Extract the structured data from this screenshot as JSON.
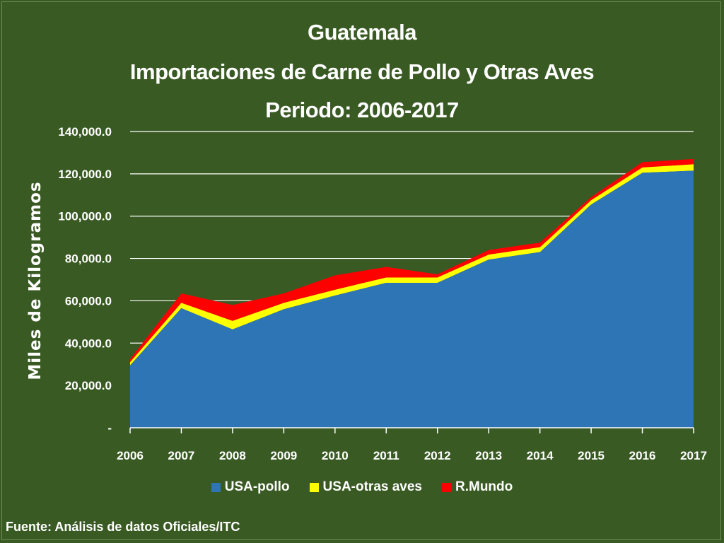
{
  "chart_data": {
    "type": "area",
    "stacked": true,
    "title_lines": [
      "Guatemala",
      "Importaciones de Carne de Pollo y Otras Aves",
      "Periodo: 2006-2017"
    ],
    "ylabel": "Miles de Kilogramos",
    "xlabel": "",
    "categories": [
      "2006",
      "2007",
      "2008",
      "2009",
      "2010",
      "2011",
      "2012",
      "2013",
      "2014",
      "2015",
      "2016",
      "2017"
    ],
    "y_ticks": [
      "-",
      "20,000.0",
      "40,000.0",
      "60,000.0",
      "80,000.0",
      "100,000.0",
      "120,000.0",
      "140,000.0"
    ],
    "ylim": [
      0,
      140000
    ],
    "grid": true,
    "legend_position": "bottom",
    "series": [
      {
        "name": "USA-pollo",
        "color": "#2e75b6",
        "values": [
          29500,
          56500,
          46500,
          56000,
          62500,
          68500,
          68500,
          79500,
          83000,
          105500,
          120500,
          121500
        ]
      },
      {
        "name": "USA-otras aves",
        "color": "#ffff00",
        "values": [
          1500,
          2500,
          4000,
          3000,
          2700,
          2500,
          2500,
          2300,
          2300,
          2000,
          2500,
          3000
        ]
      },
      {
        "name": "R.Mundo",
        "color": "#ff0000",
        "values": [
          1500,
          4500,
          7500,
          4500,
          6800,
          5000,
          1500,
          2200,
          2200,
          1500,
          2500,
          2500
        ]
      }
    ]
  },
  "source": "Fuente: Análisis de datos Oficiales/ITC"
}
